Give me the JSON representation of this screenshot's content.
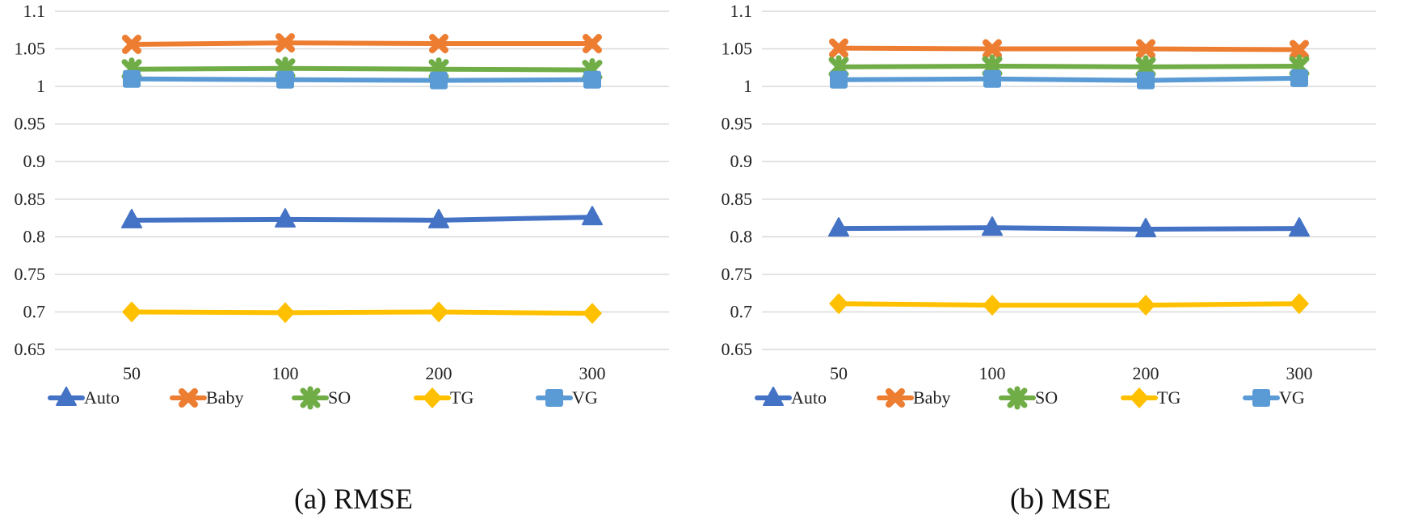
{
  "chart_data": [
    {
      "type": "line",
      "title": "(a) RMSE",
      "categories": [
        "50",
        "100",
        "200",
        "300"
      ],
      "ylim": [
        0.65,
        1.1
      ],
      "yticks": [
        "1.1",
        "1.05",
        "1",
        "0.95",
        "0.9",
        "0.85",
        "0.8",
        "0.75",
        "0.7",
        "0.65"
      ],
      "grid": true,
      "legend_position": "bottom",
      "series": [
        {
          "name": "Auto",
          "marker": "triangle",
          "color": "#4472C4",
          "values": [
            0.822,
            0.823,
            0.822,
            0.826
          ]
        },
        {
          "name": "Baby",
          "marker": "cross",
          "color": "#ED7D31",
          "values": [
            1.056,
            1.058,
            1.057,
            1.057
          ]
        },
        {
          "name": "SO",
          "marker": "diamond-cross",
          "color": "#70AD47",
          "values": [
            1.023,
            1.024,
            1.023,
            1.022
          ]
        },
        {
          "name": "TG",
          "marker": "diamond",
          "color": "#FFC000",
          "values": [
            0.7,
            0.699,
            0.7,
            0.698
          ]
        },
        {
          "name": "VG",
          "marker": "square",
          "color": "#5B9BD5",
          "values": [
            1.01,
            1.009,
            1.008,
            1.009
          ]
        }
      ]
    },
    {
      "type": "line",
      "title": "(b) MSE",
      "categories": [
        "50",
        "100",
        "200",
        "300"
      ],
      "ylim": [
        0.65,
        1.1
      ],
      "yticks": [
        "1.1",
        "1.05",
        "1",
        "0.95",
        "0.9",
        "0.85",
        "0.8",
        "0.75",
        "0.7",
        "0.65"
      ],
      "grid": true,
      "legend_position": "bottom",
      "series": [
        {
          "name": "Auto",
          "marker": "triangle",
          "color": "#4472C4",
          "values": [
            0.811,
            0.812,
            0.81,
            0.811
          ]
        },
        {
          "name": "Baby",
          "marker": "cross",
          "color": "#ED7D31",
          "values": [
            1.051,
            1.05,
            1.05,
            1.049
          ]
        },
        {
          "name": "SO",
          "marker": "diamond-cross",
          "color": "#70AD47",
          "values": [
            1.026,
            1.027,
            1.026,
            1.027
          ]
        },
        {
          "name": "TG",
          "marker": "diamond",
          "color": "#FFC000",
          "values": [
            0.711,
            0.709,
            0.709,
            0.711
          ]
        },
        {
          "name": "VG",
          "marker": "square",
          "color": "#5B9BD5",
          "values": [
            1.009,
            1.01,
            1.008,
            1.011
          ]
        }
      ]
    }
  ]
}
